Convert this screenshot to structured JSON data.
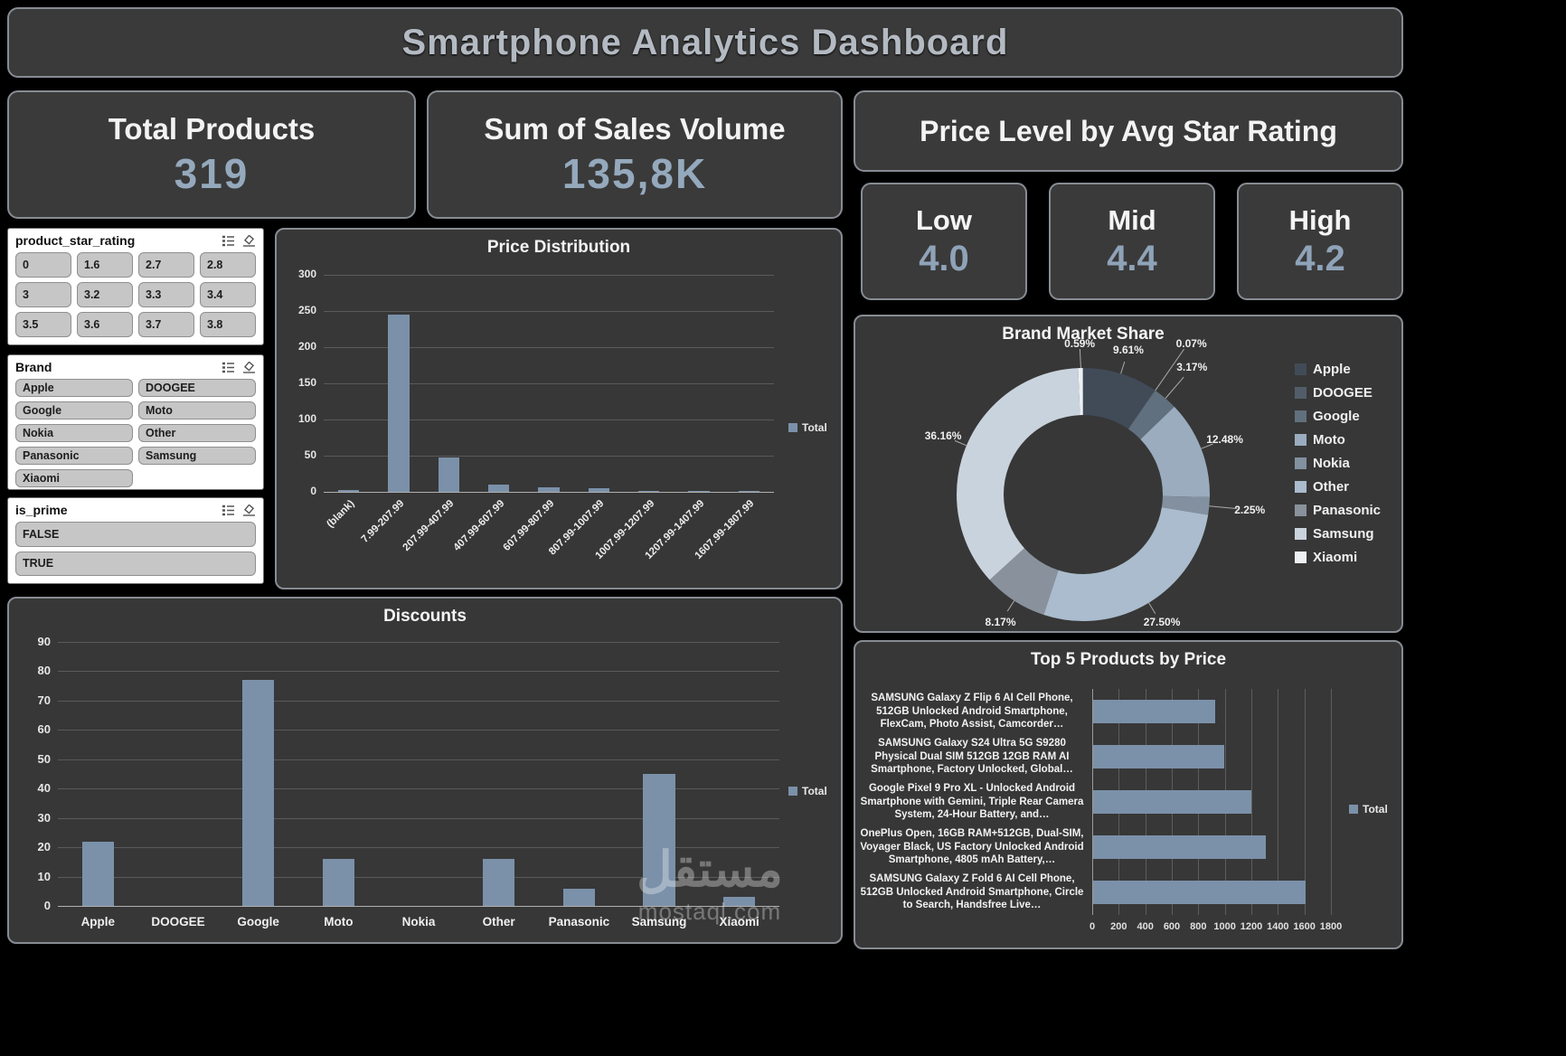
{
  "title": "Smartphone Analytics Dashboard",
  "kpis": {
    "total_products": {
      "label": "Total Products",
      "value": "319"
    },
    "sales_volume": {
      "label": "Sum of Sales Volume",
      "value": "135,8K"
    },
    "price_level": {
      "label": "Price Level by Avg Star Rating",
      "cards": [
        {
          "label": "Low",
          "value": "4.0"
        },
        {
          "label": "Mid",
          "value": "4.4"
        },
        {
          "label": "High",
          "value": "4.2"
        }
      ]
    }
  },
  "slicers": [
    {
      "id": "star",
      "title": "product_star_rating",
      "columns": 4,
      "options": [
        "0",
        "1.6",
        "2.7",
        "2.8",
        "3",
        "3.2",
        "3.3",
        "3.4",
        "3.5",
        "3.6",
        "3.7",
        "3.8"
      ]
    },
    {
      "id": "brand",
      "title": "Brand",
      "columns": 2,
      "options": [
        "Apple",
        "DOOGEE",
        "Google",
        "Moto",
        "Nokia",
        "Other",
        "Panasonic",
        "Samsung",
        "Xiaomi"
      ]
    },
    {
      "id": "prime",
      "title": "is_prime",
      "columns": 1,
      "options": [
        "FALSE",
        "TRUE"
      ]
    }
  ],
  "chart_data": [
    {
      "id": "price_distribution",
      "type": "bar",
      "title": "Price Distribution",
      "categories": [
        "(blank)",
        "7.99-207.99",
        "207.99-407.99",
        "407.99-607.99",
        "607.99-807.99",
        "807.99-1007.99",
        "1007.99-1207.99",
        "1207.99-1407.99",
        "1607.99-1807.99"
      ],
      "values": [
        3,
        245,
        47,
        10,
        6,
        5,
        1,
        1,
        1
      ],
      "ylim": [
        0,
        300
      ],
      "ytick_step": 50,
      "grid": true,
      "legend": [
        "Total"
      ],
      "legend_position": "right",
      "bar_color": "#7b91a9"
    },
    {
      "id": "discounts",
      "type": "bar",
      "title": "Discounts",
      "categories": [
        "Apple",
        "DOOGEE",
        "Google",
        "Moto",
        "Nokia",
        "Other",
        "Panasonic",
        "Samsung",
        "Xiaomi"
      ],
      "values": [
        22,
        0,
        77,
        16,
        0,
        16,
        6,
        45,
        3
      ],
      "ylim": [
        0,
        90
      ],
      "ytick_step": 10,
      "grid": true,
      "legend": [
        "Total"
      ],
      "legend_position": "right",
      "bar_color": "#7b91a9"
    },
    {
      "id": "brand_market_share",
      "type": "pie",
      "title": "Brand Market Share",
      "donut": true,
      "categories": [
        "Apple",
        "DOOGEE",
        "Google",
        "Moto",
        "Nokia",
        "Other",
        "Panasonic",
        "Samsung",
        "Xiaomi"
      ],
      "values": [
        9.61,
        0.07,
        3.17,
        12.48,
        2.25,
        27.5,
        8.17,
        36.16,
        0.59
      ],
      "labels": [
        "9.61%",
        "0.07%",
        "3.17%",
        "12.48%",
        "2.25%",
        "27.50%",
        "8.17%",
        "36.16%",
        "0.59%"
      ],
      "colors": [
        "#414b58",
        "#525d69",
        "#61707e",
        "#9aacbe",
        "#8290a0",
        "#aabccd",
        "#89929c",
        "#c9d3dd",
        "#eef1f4"
      ],
      "legend_position": "right"
    },
    {
      "id": "top5_products_by_price",
      "type": "bar",
      "orientation": "horizontal",
      "title": "Top 5 Products by Price",
      "categories": [
        "SAMSUNG Galaxy Z Flip 6 AI Cell Phone, 512GB Unlocked Android Smartphone, FlexCam, Photo Assist, Camcorder…",
        "SAMSUNG Galaxy S24 Ultra 5G S9280 Physical Dual SIM 512GB 12GB RAM AI Smartphone, Factory Unlocked, Global…",
        "Google Pixel 9 Pro XL - Unlocked Android Smartphone with Gemini, Triple Rear Camera System, 24-Hour Battery, and…",
        "OnePlus Open, 16GB RAM+512GB, Dual-SIM, Voyager Black, US Factory Unlocked Android Smartphone, 4805 mAh Battery,…",
        "SAMSUNG Galaxy Z Fold 6 AI Cell Phone, 512GB Unlocked Android Smartphone, Circle to Search, Handsfree Live…"
      ],
      "values": [
        920,
        990,
        1190,
        1300,
        1600
      ],
      "xlim": [
        0,
        1800
      ],
      "xtick_step": 200,
      "grid": true,
      "legend": [
        "Total"
      ],
      "legend_position": "right",
      "bar_color": "#7b91a9"
    }
  ],
  "watermark": {
    "brand": "مستقل",
    "site": "mostaql.com"
  },
  "colors": {
    "bar": "#7b91a9",
    "card_bg": "#3a3a3a",
    "value_text": "#95a9bd"
  }
}
